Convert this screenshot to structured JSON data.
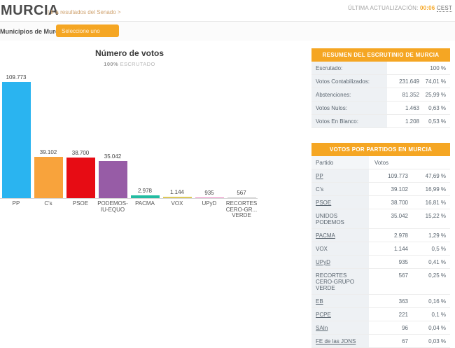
{
  "meta": {
    "last_update_label": "ÚLTIMA ACTUALIZACIÓN:",
    "last_update_time": "00:06",
    "last_update_tz": "CEST"
  },
  "header": {
    "title": "MURCIA",
    "senate_link": "| Ir a resultados del Senado >"
  },
  "filter": {
    "label": "Municipios de Murcia",
    "dropdown_value": "Seleccione uno"
  },
  "chart": {
    "subtitle_pct": "100%",
    "subtitle_word": "ESCRUTADO"
  },
  "chart_data": {
    "type": "bar",
    "title": "Número de votos",
    "subtitle": "100% ESCRUTADO",
    "categories": [
      "PP",
      "C's",
      "PSOE",
      "PODEMOS-IU-EQUO",
      "PACMA",
      "VOX",
      "UPyD",
      "RECORTES CERO-GR...VERDE"
    ],
    "label_lines": [
      [
        "PP"
      ],
      [
        "C's"
      ],
      [
        "PSOE"
      ],
      [
        "PODEMOS-",
        "IU-EQUO"
      ],
      [
        "PACMA"
      ],
      [
        "VOX"
      ],
      [
        "UPyD"
      ],
      [
        "RECORTES",
        "CERO-GR...",
        "VERDE"
      ]
    ],
    "ids": [
      "pp",
      "cs",
      "psoe",
      "podemos-iu-equo",
      "pacma",
      "vox",
      "upyd",
      "recortes-cero-grupo-verde"
    ],
    "values": [
      109773,
      39102,
      38700,
      35042,
      2978,
      1144,
      935,
      567
    ],
    "value_labels": [
      "109.773",
      "39.102",
      "38.700",
      "35.042",
      "2.978",
      "1.144",
      "935",
      "567"
    ],
    "colors": [
      "#2ab4f0",
      "#f8a33c",
      "#e70c14",
      "#975ca6",
      "#23bca2",
      "#ddc85a",
      "#ec87c0",
      "#cccccc"
    ],
    "ylim": [
      0,
      110000
    ],
    "grid": false,
    "legend": false
  },
  "summary": {
    "title": "RESUMEN DEL ESCRUTINIO DE MURCIA",
    "rows": [
      {
        "label": "Escrutado:",
        "votes": "",
        "pct": "100 %"
      },
      {
        "label": "Votos Contabilizados:",
        "votes": "231.649",
        "pct": "74,01 %"
      },
      {
        "label": "Abstenciones:",
        "votes": "81.352",
        "pct": "25,99 %"
      },
      {
        "label": "Votos Nulos:",
        "votes": "1.463",
        "pct": "0,63 %"
      },
      {
        "label": "Votos En Blanco:",
        "votes": "1.208",
        "pct": "0,53 %"
      }
    ]
  },
  "parties": {
    "title": "VOTOS POR PARTIDOS EN MURCIA",
    "col_party": "Partido",
    "col_votes": "Votos",
    "rows": [
      {
        "name": "PP",
        "votes": "109.773",
        "pct": "47,69 %",
        "underline": true
      },
      {
        "name": "C's",
        "votes": "39.102",
        "pct": "16,99 %",
        "underline": false
      },
      {
        "name": "PSOE",
        "votes": "38.700",
        "pct": "16,81 %",
        "underline": true
      },
      {
        "name": "UNIDOS PODEMOS",
        "votes": "35.042",
        "pct": "15,22 %",
        "underline": false
      },
      {
        "name": "PACMA",
        "votes": "2.978",
        "pct": "1,29 %",
        "underline": true
      },
      {
        "name": "VOX",
        "votes": "1.144",
        "pct": "0,5 %",
        "underline": false
      },
      {
        "name": "UPyD",
        "votes": "935",
        "pct": "0,41 %",
        "underline": true
      },
      {
        "name": "RECORTES CERO-GRUPO VERDE",
        "votes": "567",
        "pct": "0,25 %",
        "underline": false
      },
      {
        "name": "EB",
        "votes": "363",
        "pct": "0,16 %",
        "underline": true
      },
      {
        "name": "PCPE",
        "votes": "221",
        "pct": "0,1 %",
        "underline": true
      },
      {
        "name": "SAIn",
        "votes": "96",
        "pct": "0,04 %",
        "underline": true
      },
      {
        "name": "FE de las JONS",
        "votes": "67",
        "pct": "0,03 %",
        "underline": true
      }
    ]
  },
  "colors": {
    "accent_orange": "#f5a623",
    "row_label_bg": "#eef1f4",
    "text_gray": "#5b6670"
  }
}
